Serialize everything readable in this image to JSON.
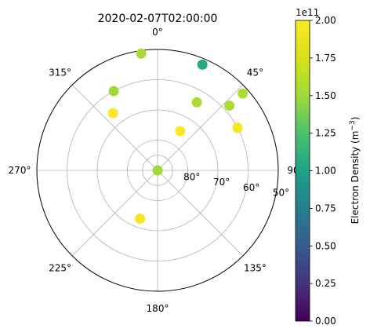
{
  "chart_data": {
    "type": "scatter",
    "projection": "polar",
    "title": "2020-02-07T02:00:00",
    "theta_zero": "N",
    "theta_direction": "clockwise",
    "r_axis": "elevation_deg",
    "r_range": [
      90,
      50
    ],
    "angle_tick_labels": [
      "0°",
      "45°",
      "90°",
      "135°",
      "180°",
      "225°",
      "270°",
      "315°"
    ],
    "radial_tick_labels": [
      "80°",
      "70°",
      "60°",
      "50°"
    ],
    "radial_tick_values": [
      80,
      70,
      60,
      50
    ],
    "grid": true,
    "colormap": "viridis",
    "clim": [
      0,
      200000000000
    ],
    "colorbar": {
      "label": "Electron Density (m",
      "label_exponent": "−3",
      "label_close": ")",
      "offset_text": "1e11",
      "ticks": [
        0.0,
        0.25,
        0.5,
        0.75,
        1.0,
        1.25,
        1.5,
        1.75,
        2.0
      ],
      "tick_labels": [
        "0.00",
        "0.25",
        "0.50",
        "0.75",
        "1.00",
        "1.25",
        "1.50",
        "1.75",
        "2.00"
      ]
    },
    "points": [
      {
        "azimuth": 0,
        "elevation": 90,
        "value": 1.5
      },
      {
        "azimuth": 200,
        "elevation": 73,
        "value": 1.95
      },
      {
        "azimuth": 30,
        "elevation": 75,
        "value": 2.0
      },
      {
        "azimuth": 62,
        "elevation": 60,
        "value": 1.95
      },
      {
        "azimuth": 30,
        "elevation": 64,
        "value": 1.55
      },
      {
        "azimuth": 48,
        "elevation": 58,
        "value": 1.55
      },
      {
        "azimuth": 48,
        "elevation": 52,
        "value": 1.55
      },
      {
        "azimuth": 23,
        "elevation": 52,
        "value": 1.05
      },
      {
        "azimuth": 331,
        "elevation": 60,
        "value": 1.5
      },
      {
        "azimuth": 352,
        "elevation": 51,
        "value": 1.55
      },
      {
        "azimuth": 322,
        "elevation": 66,
        "value": 2.0
      }
    ]
  }
}
